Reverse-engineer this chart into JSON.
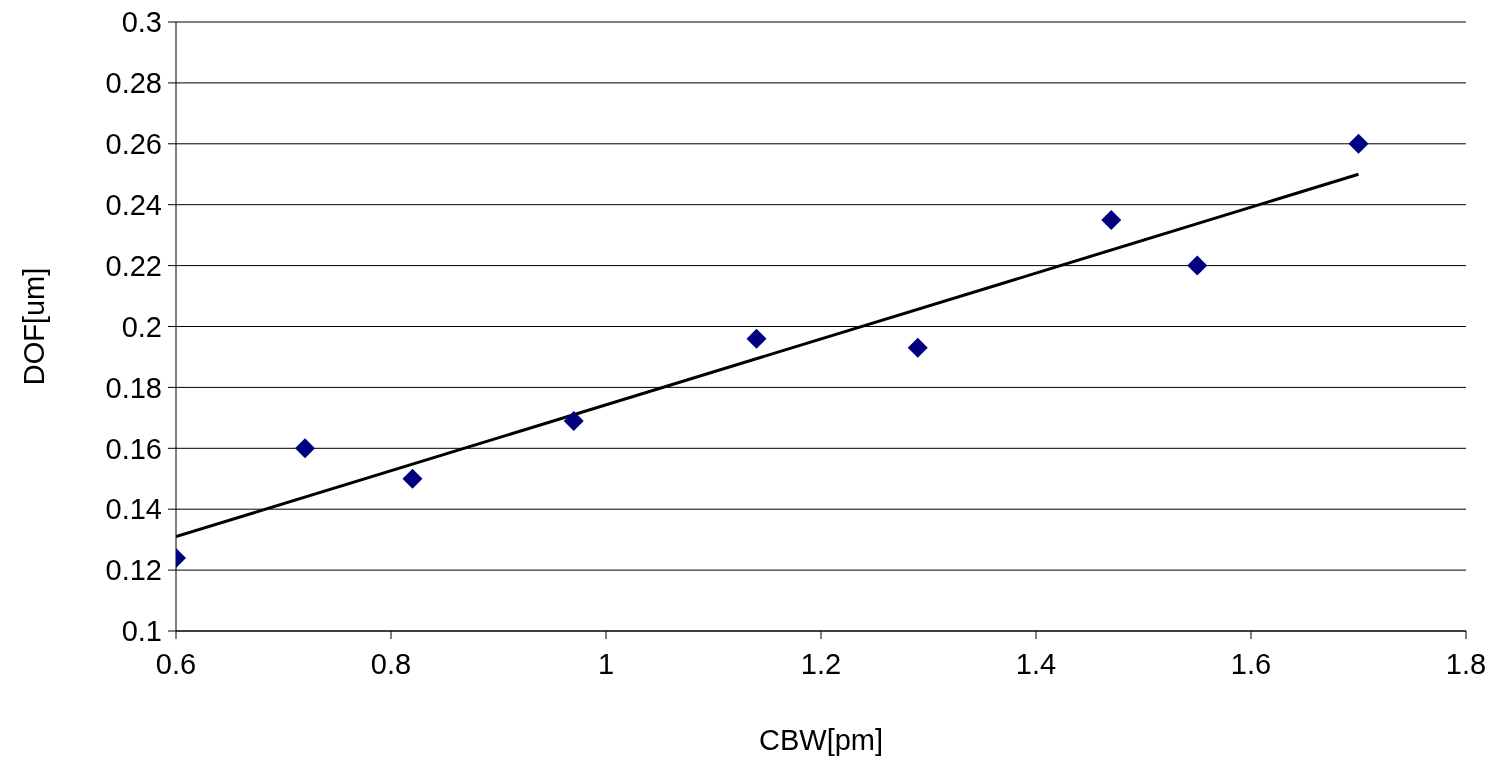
{
  "chart_data": {
    "type": "scatter",
    "xlabel": "CBW[pm]",
    "ylabel": "DOF[um]",
    "xlim": [
      0.6,
      1.8
    ],
    "xticks": [
      0.6,
      0.8,
      1,
      1.2,
      1.4,
      1.6,
      1.8
    ],
    "ylim": [
      0.1,
      0.3
    ],
    "yticks": [
      0.1,
      0.12,
      0.14,
      0.16,
      0.18,
      0.2,
      0.22,
      0.24,
      0.26,
      0.28,
      0.3
    ],
    "grid": "y",
    "legend": false,
    "marker": "diamond",
    "series": [
      {
        "color": "#000080",
        "x": [
          0.6,
          0.72,
          0.82,
          0.97,
          1.14,
          1.29,
          1.47,
          1.55,
          1.7
        ],
        "values": [
          0.124,
          0.16,
          0.15,
          0.169,
          0.196,
          0.193,
          0.235,
          0.22,
          0.26
        ]
      },
      {
        "type": "line",
        "color": "#000000",
        "x": [
          0.6,
          1.7
        ],
        "values": [
          0.131,
          0.25
        ],
        "marker": "none",
        "line_style": "solid"
      }
    ]
  }
}
